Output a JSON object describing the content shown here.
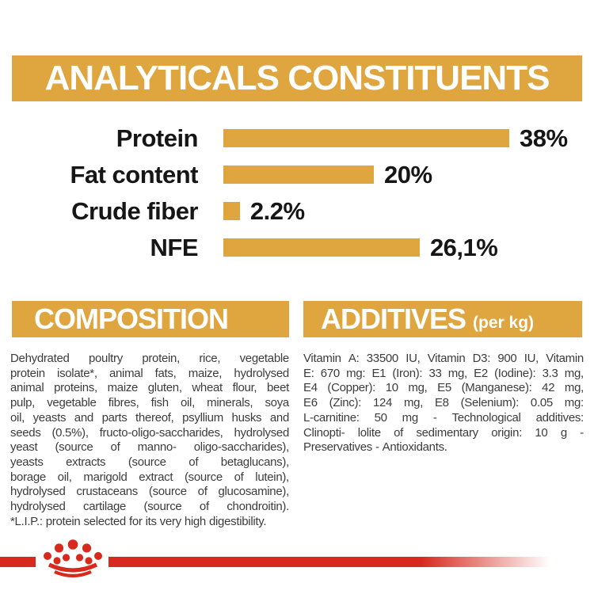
{
  "banner": {
    "title": "ANALYTICALS CONSTITUENTS"
  },
  "chart_data": {
    "type": "bar",
    "orientation": "horizontal",
    "title": "ANALYTICALS CONSTITUENTS",
    "categories": [
      "Protein",
      "Fat content",
      "Crude fiber",
      "NFE"
    ],
    "values": [
      38,
      20,
      2.2,
      26.1
    ],
    "value_labels": [
      "38%",
      "20%",
      "2.2%",
      "26,1%"
    ],
    "unit": "%",
    "xlim": [
      0,
      40
    ],
    "grid": false,
    "legend": "none",
    "bar_color": "#DFA53F"
  },
  "composition": {
    "header": "COMPOSITION",
    "lines": [
      "Dehydrated poultry protein, rice, vegetable",
      "protein isolate*, animal fats, maize, hydrolysed",
      "animal proteins, maize gluten, wheat flour, beet",
      "pulp, vegetable fibres, fish oil, minerals, soya",
      "oil, yeasts and parts thereof, psyllium husks and",
      "seeds (0.5%), fructo-oligo-saccharides, hydrolysed",
      "yeast (source of manno- oligo-saccharides),",
      "yeasts extracts (source of betaglucans),",
      "borage oil, marigold extract (source of lutein),",
      "hydrolysed crustaceans (source of glucosamine),",
      "hydrolysed cartilage (source of chondroitin).",
      "*L.I.P.: protein selected for its very high digestibility."
    ]
  },
  "additives": {
    "header": "ADDITIVES",
    "header_suffix": "(per kg)",
    "lines": [
      "Vitamin A: 33500 IU, Vitamin D3: 900 IU, Vitamin",
      "E: 670 mg: E1 (Iron): 33 mg, E2 (Iodine): 3.3 mg,",
      "E4 (Copper): 10 mg, E5 (Manganese): 42 mg,",
      "E6 (Zinc): 124 mg, E8 (Selenium): 0.05 mg:",
      "L-carnitine: 50 mg - Technological additives:",
      "Clinopti- lolite of sedimentary origin: 10 g -",
      "Preservatives - Antioxidants."
    ]
  },
  "footer": {
    "logo": "royal-canin-crown-logo"
  },
  "colors": {
    "gold": "#DFA53F",
    "red": "#D7291D",
    "body_text": "#3C3C3C",
    "chart_text": "#161616",
    "background": "#FFFFFF"
  }
}
